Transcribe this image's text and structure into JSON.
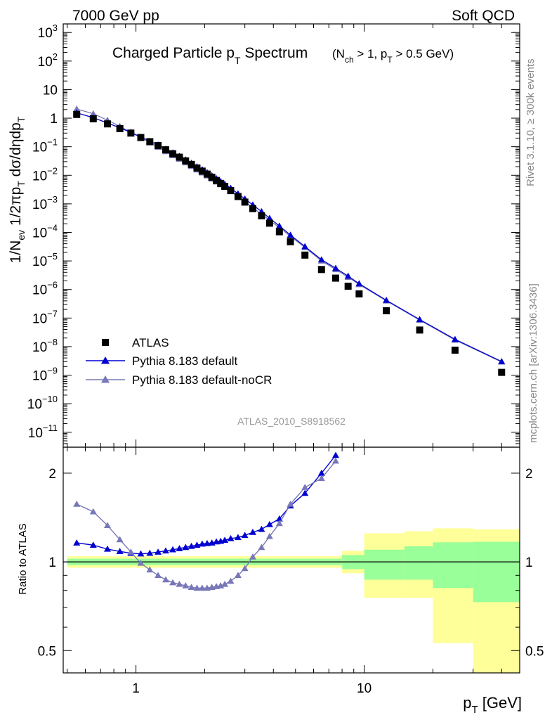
{
  "header": {
    "left": "7000 GeV pp",
    "right": "Soft QCD"
  },
  "side_labels": {
    "rivet": "Rivet 3.1.10, ≥ 300k events",
    "mcplots": "mcplots.cern.ch [arXiv:1306.3436]"
  },
  "analysis_id": "ATLAS_2010_S8918562",
  "colors": {
    "data": "#000000",
    "default": "#0000d0",
    "nocr": "#7878b8",
    "band_outer": "#ffff99",
    "band_inner": "#99ff99"
  },
  "chart_data": [
    {
      "type": "scatter",
      "title_main": "Charged Particle p",
      "title_main_sub": "T",
      "title_main_rest": " Spectrum",
      "title_cond": "(N",
      "title_cond_sub1": "ch",
      "title_cond_mid": " > 1, p",
      "title_cond_sub2": "T",
      "title_cond_rest": " > 0.5 GeV)",
      "ylabel": "1/N_ev 1/2πp_T dσ/dηdp_T",
      "xlabel": "p_T [GeV]",
      "xscale": "log",
      "yscale": "log",
      "xlim": [
        0.48,
        48
      ],
      "ylim": [
        3e-12,
        2000.0
      ],
      "yticks": [
        {
          "base": "10",
          "exp": "3",
          "value": 1000
        },
        {
          "base": "10",
          "exp": "2",
          "value": 100
        },
        {
          "base": "10",
          "exp": "",
          "value": 10
        },
        {
          "base": "1",
          "exp": "",
          "value": 1
        },
        {
          "base": "10",
          "exp": "−1",
          "value": 0.1
        },
        {
          "base": "10",
          "exp": "−2",
          "value": 0.01
        },
        {
          "base": "10",
          "exp": "−3",
          "value": 0.001
        },
        {
          "base": "10",
          "exp": "−4",
          "value": 0.0001
        },
        {
          "base": "10",
          "exp": "−5",
          "value": 1e-05
        },
        {
          "base": "10",
          "exp": "−6",
          "value": 1e-06
        },
        {
          "base": "10",
          "exp": "−7",
          "value": 1e-07
        },
        {
          "base": "10",
          "exp": "−8",
          "value": 1e-08
        },
        {
          "base": "10",
          "exp": "−9",
          "value": 1e-09
        },
        {
          "base": "10",
          "exp": "−10",
          "value": 1e-10
        },
        {
          "base": "10",
          "exp": "−11",
          "value": 1e-11
        }
      ],
      "legend": [
        "ATLAS",
        "Pythia 8.183 default",
        "Pythia 8.183 default-noCR"
      ],
      "legend_position": "lower-left",
      "series": [
        {
          "name": "ATLAS",
          "marker": "square",
          "x": [
            0.55,
            0.65,
            0.75,
            0.85,
            0.95,
            1.05,
            1.15,
            1.25,
            1.35,
            1.45,
            1.55,
            1.65,
            1.75,
            1.85,
            1.95,
            2.05,
            2.15,
            2.25,
            2.35,
            2.45,
            2.6,
            2.8,
            3.0,
            3.25,
            3.55,
            3.85,
            4.25,
            4.75,
            5.5,
            6.5,
            7.5,
            8.5,
            9.5,
            12.5,
            17.5,
            25,
            40
          ],
          "values": [
            1.35,
            0.95,
            0.63,
            0.43,
            0.3,
            0.21,
            0.15,
            0.11,
            0.078,
            0.057,
            0.043,
            0.032,
            0.024,
            0.018,
            0.014,
            0.011,
            0.0085,
            0.0066,
            0.0052,
            0.0041,
            0.0029,
            0.0018,
            0.00115,
            0.00068,
            0.00038,
            0.00021,
            0.000105,
            4.7e-05,
            1.6e-05,
            5e-06,
            2.5e-06,
            1.3e-06,
            7e-07,
            1.8e-07,
            3.8e-08,
            7.5e-09,
            1.25e-09
          ]
        },
        {
          "name": "Pythia 8.183 default",
          "marker": "triangle",
          "x": [
            0.55,
            0.65,
            0.75,
            0.85,
            0.95,
            1.05,
            1.15,
            1.25,
            1.35,
            1.45,
            1.55,
            1.65,
            1.75,
            1.85,
            1.95,
            2.05,
            2.15,
            2.25,
            2.35,
            2.45,
            2.6,
            2.8,
            3.0,
            3.25,
            3.55,
            3.85,
            4.25,
            4.75,
            5.5,
            6.5,
            7.5,
            8.5,
            9.5,
            12.5,
            17.5,
            25,
            40
          ],
          "values": [
            1.53,
            1.04,
            0.68,
            0.459,
            0.316,
            0.219,
            0.157,
            0.116,
            0.083,
            0.0615,
            0.0467,
            0.0351,
            0.0266,
            0.0201,
            0.0159,
            0.0126,
            0.0098,
            0.0077,
            0.0061,
            0.0049,
            0.00354,
            0.00226,
            0.00149,
            0.000917,
            0.000536,
            0.000312,
            0.000168,
            8.1e-05,
            3.2e-05,
            1.1e-05,
            5.55e-06,
            2.95e-06,
            1.6e-06,
            4.2e-07,
            8.9e-08,
            1.8e-08,
            3e-09
          ]
        },
        {
          "name": "Pythia 8.183 default-noCR",
          "marker": "triangle",
          "x": [
            0.55,
            0.65,
            0.75,
            0.85,
            0.95,
            1.05,
            1.15,
            1.25,
            1.35,
            1.45,
            1.55,
            1.65,
            1.75,
            1.85,
            1.95,
            2.05,
            2.15,
            2.25,
            2.35,
            2.45,
            2.6,
            2.8,
            3.0,
            3.25,
            3.55,
            3.85,
            4.25,
            4.75,
            5.5,
            6.5,
            7.5,
            8.5,
            9.5,
            12.5,
            17.5,
            25,
            40
          ],
          "values": [
            2.1,
            1.43,
            0.85,
            0.52,
            0.32,
            0.208,
            0.139,
            0.097,
            0.0678,
            0.0491,
            0.0369,
            0.0276,
            0.0207,
            0.0155,
            0.0122,
            0.0096,
            0.0075,
            0.0059,
            0.0047,
            0.0038,
            0.00274,
            0.00176,
            0.00118,
            0.000734,
            0.000437,
            0.000265,
            0.000148,
            7.3e-05,
            2.95e-05,
            1e-05,
            5e-06,
            2.7e-06,
            1.5e-06,
            4e-07,
            8.5e-08,
            1.7e-08,
            2.9e-09
          ]
        }
      ]
    },
    {
      "type": "line",
      "ylabel": "Ratio to ATLAS",
      "xscale": "log",
      "yscale": "log",
      "xlim": [
        0.48,
        48
      ],
      "ylim": [
        0.42,
        2.45
      ],
      "xticks": [
        {
          "label": "1",
          "value": 1
        },
        {
          "label": "10",
          "value": 10
        }
      ],
      "yticks": [
        {
          "label": "0.5",
          "value": 0.5
        },
        {
          "label": "1",
          "value": 1
        },
        {
          "label": "2",
          "value": 2
        }
      ],
      "bands": {
        "edges": [
          0.5,
          8,
          10,
          15,
          20,
          30,
          50
        ],
        "inner_low": [
          0.975,
          0.945,
          0.87,
          0.87,
          0.815,
          0.73
        ],
        "inner_high": [
          1.025,
          1.055,
          1.1,
          1.13,
          1.165,
          1.17
        ],
        "outer_low": [
          0.955,
          0.915,
          0.755,
          0.755,
          0.53,
          0.37
        ],
        "outer_high": [
          1.045,
          1.09,
          1.25,
          1.27,
          1.3,
          1.29
        ]
      },
      "series": [
        {
          "name": "Pythia 8.183 default",
          "x": [
            0.55,
            0.65,
            0.75,
            0.85,
            0.95,
            1.05,
            1.15,
            1.25,
            1.35,
            1.45,
            1.55,
            1.65,
            1.75,
            1.85,
            1.95,
            2.05,
            2.15,
            2.25,
            2.35,
            2.45,
            2.6,
            2.8,
            3.0,
            3.25,
            3.55,
            3.85,
            4.25,
            4.75,
            5.5,
            6.5,
            7.5
          ],
          "values": [
            1.16,
            1.14,
            1.105,
            1.085,
            1.07,
            1.065,
            1.07,
            1.08,
            1.09,
            1.1,
            1.11,
            1.12,
            1.13,
            1.14,
            1.15,
            1.155,
            1.16,
            1.17,
            1.175,
            1.185,
            1.2,
            1.21,
            1.23,
            1.26,
            1.29,
            1.34,
            1.4,
            1.55,
            1.71,
            2.0,
            2.3
          ]
        },
        {
          "name": "Pythia 8.183 default-noCR",
          "x": [
            0.55,
            0.65,
            0.75,
            0.85,
            0.95,
            1.05,
            1.15,
            1.25,
            1.35,
            1.45,
            1.55,
            1.65,
            1.75,
            1.85,
            1.95,
            2.05,
            2.15,
            2.25,
            2.35,
            2.45,
            2.6,
            2.8,
            3.0,
            3.25,
            3.55,
            3.85,
            4.25,
            4.75,
            5.5,
            6.5,
            7.5
          ],
          "values": [
            1.57,
            1.48,
            1.33,
            1.19,
            1.08,
            0.99,
            0.94,
            0.9,
            0.87,
            0.85,
            0.84,
            0.83,
            0.82,
            0.815,
            0.815,
            0.815,
            0.82,
            0.825,
            0.83,
            0.84,
            0.86,
            0.9,
            0.95,
            1.04,
            1.12,
            1.22,
            1.35,
            1.57,
            1.79,
            1.92,
            2.2
          ]
        }
      ]
    }
  ]
}
